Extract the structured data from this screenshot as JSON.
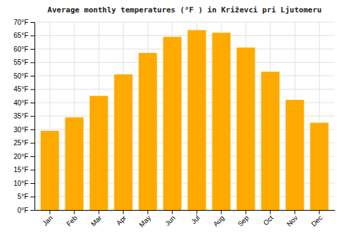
{
  "chart_data": {
    "type": "bar",
    "title": "Average monthly temperatures (°F ) in Križevci pri Ljutomeru",
    "categories": [
      "Jan",
      "Feb",
      "Mar",
      "Apr",
      "May",
      "Jun",
      "Jul",
      "Aug",
      "Sep",
      "Oct",
      "Nov",
      "Dec"
    ],
    "values": [
      29.5,
      34.5,
      42.5,
      50.5,
      58.5,
      64.5,
      67.0,
      66.0,
      60.5,
      51.5,
      41.0,
      32.5
    ],
    "color": "#FFAA00",
    "ylim": [
      0,
      70
    ],
    "yticks": [
      {
        "value": 0,
        "label": "0°F"
      },
      {
        "value": 5,
        "label": "5°F"
      },
      {
        "value": 10,
        "label": "10°F"
      },
      {
        "value": 15,
        "label": "15°F"
      },
      {
        "value": 20,
        "label": "20°F"
      },
      {
        "value": 25,
        "label": "25°F"
      },
      {
        "value": 30,
        "label": "30°F"
      },
      {
        "value": 35,
        "label": "35°F"
      },
      {
        "value": 40,
        "label": "40°F"
      },
      {
        "value": 45,
        "label": "45°F"
      },
      {
        "value": 50,
        "label": "50°F"
      },
      {
        "value": 55,
        "label": "55°F"
      },
      {
        "value": 60,
        "label": "60°F"
      },
      {
        "value": 65,
        "label": "65°F"
      },
      {
        "value": 70,
        "label": "70°F"
      }
    ],
    "grid": true
  }
}
